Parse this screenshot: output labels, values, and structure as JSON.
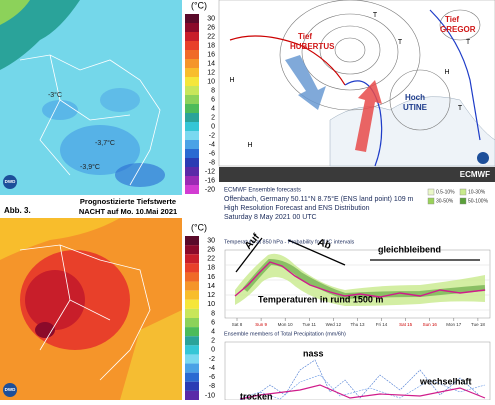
{
  "maps": [
    {
      "unit": "(°C)",
      "scale": [
        30,
        26,
        22,
        18,
        16,
        14,
        12,
        10,
        8,
        6,
        4,
        2,
        0,
        -2,
        -4,
        -6,
        -8,
        -12,
        -16,
        -20
      ],
      "colors": [
        "#5a0a2a",
        "#8b0a2a",
        "#c81e2a",
        "#e8402a",
        "#f06a28",
        "#f5952a",
        "#f8bd2c",
        "#f5e63a",
        "#c8e65a",
        "#8cd25a",
        "#4cbb5a",
        "#2aa39a",
        "#35c6d6",
        "#7ad9f0",
        "#4aa2e6",
        "#2a6ad2",
        "#2a3cb4",
        "#5a2aa8",
        "#9a2ab4",
        "#d23cd2"
      ],
      "labels": [
        "-3°C",
        "-3,7°C",
        "-3,9°C"
      ],
      "logo": "DWD"
    },
    {
      "figure": "Abb. 3.",
      "title": "Prognostizierte Tiefstwerte",
      "subtitle": "NACHT auf Mo. 10.Mai 2021",
      "unit": "(°C)",
      "scale": [
        30,
        26,
        22,
        18,
        16,
        14,
        12,
        10,
        8,
        6,
        4,
        2,
        0,
        -2,
        -4,
        -6,
        -8,
        -10
      ],
      "colors": [
        "#5a0a2a",
        "#8b0a2a",
        "#c81e2a",
        "#e8402a",
        "#f06a28",
        "#f5952a",
        "#f8bd2c",
        "#f5e63a",
        "#c8e65a",
        "#8cd25a",
        "#4cbb5a",
        "#2aa39a",
        "#35c6d6",
        "#7ad9f0",
        "#4aa2e6",
        "#2a6ad2",
        "#2a3cb4",
        "#5a2aa8"
      ],
      "logo": "DWD"
    }
  ],
  "pressure_map": {
    "lows": [
      {
        "word": "Tief",
        "name": "HUBERTUS"
      },
      {
        "word": "Tief",
        "name": "GREGOR"
      }
    ],
    "high": {
      "word": "Hoch",
      "name": "UTINE"
    },
    "markers": [
      "T",
      "T",
      "T",
      "T",
      "H",
      "H",
      "H"
    ]
  },
  "ecmwf": {
    "logo": "ECMWF",
    "lines": [
      "ECMWF Ensemble forecasts",
      "Offenbach, Germany 50.11°N 8.75°E (ENS land point) 109 m",
      "High Resolution Forecast and ENS Distribution",
      "Saturday  8 May 2021 00 UTC"
    ],
    "legend": [
      "0.5-10%",
      "10-30%",
      "30-50%",
      "50-100%"
    ],
    "legend_colors": [
      "#eaf7c8",
      "#c8ea8c",
      "#9ad25a",
      "#5aa03a"
    ],
    "panel1": {
      "title": "Temperature at 850 hPa - Probability for 1°C intervals",
      "annotations": [
        "Auf",
        "Ab",
        "gleichbleibend",
        "Temperaturen  in rund 1500 m"
      ],
      "days": [
        "Sat 8",
        "Sun 9",
        "Mon 10",
        "Tue 11",
        "Wed 12",
        "Thu 13",
        "Fri 14",
        "Sat 15",
        "Sun 16",
        "Mon 17",
        "Tue 18"
      ]
    },
    "panel2": {
      "title": "Ensemble members of Total Precipitation (mm/6h)",
      "annotations": [
        "nass",
        "wechselhaft",
        "trocken"
      ]
    }
  }
}
